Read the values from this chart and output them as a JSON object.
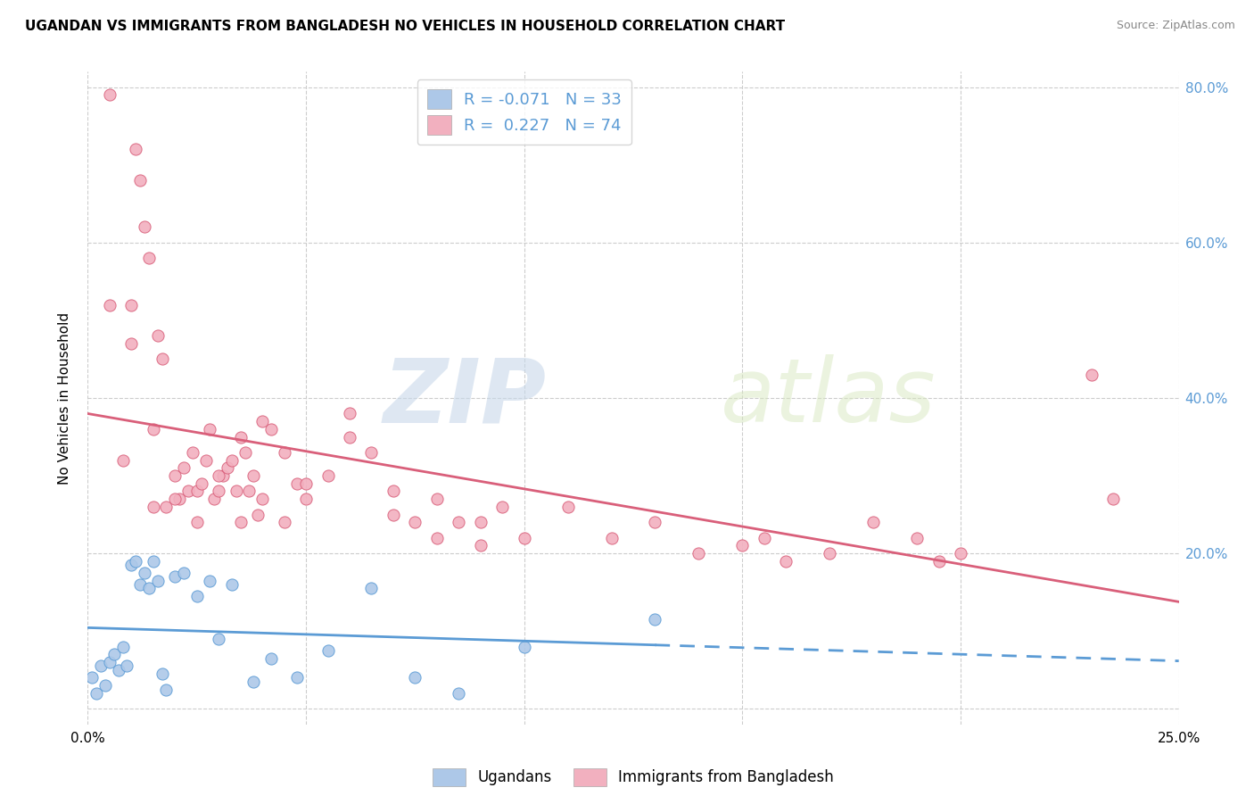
{
  "title": "UGANDAN VS IMMIGRANTS FROM BANGLADESH NO VEHICLES IN HOUSEHOLD CORRELATION CHART",
  "source": "Source: ZipAtlas.com",
  "ylabel": "No Vehicles in Household",
  "xlim": [
    0.0,
    0.25
  ],
  "ylim": [
    -0.02,
    0.82
  ],
  "yticks": [
    0.0,
    0.2,
    0.4,
    0.6,
    0.8
  ],
  "ytick_labels": [
    "",
    "20.0%",
    "40.0%",
    "60.0%",
    "80.0%"
  ],
  "xticks": [
    0.0,
    0.05,
    0.1,
    0.15,
    0.2,
    0.25
  ],
  "xtick_labels": [
    "0.0%",
    "",
    "",
    "",
    "",
    "25.0%"
  ],
  "legend_labels": [
    "Ugandans",
    "Immigrants from Bangladesh"
  ],
  "ugandan_color": "#adc8e8",
  "bangladesh_color": "#f2b0bf",
  "ugandan_line_color": "#5b9bd5",
  "bangladesh_line_color": "#d95f7a",
  "R_ugandan": -0.071,
  "N_ugandan": 33,
  "R_bangladesh": 0.227,
  "N_bangladesh": 74,
  "watermark_zip": "ZIP",
  "watermark_atlas": "atlas",
  "ugandan_x": [
    0.001,
    0.002,
    0.003,
    0.004,
    0.005,
    0.006,
    0.007,
    0.008,
    0.009,
    0.01,
    0.011,
    0.012,
    0.013,
    0.014,
    0.015,
    0.016,
    0.017,
    0.018,
    0.02,
    0.022,
    0.025,
    0.028,
    0.03,
    0.033,
    0.038,
    0.042,
    0.048,
    0.055,
    0.065,
    0.075,
    0.085,
    0.1,
    0.13
  ],
  "ugandan_y": [
    0.04,
    0.02,
    0.055,
    0.03,
    0.06,
    0.07,
    0.05,
    0.08,
    0.055,
    0.185,
    0.19,
    0.16,
    0.175,
    0.155,
    0.19,
    0.165,
    0.045,
    0.025,
    0.17,
    0.175,
    0.145,
    0.165,
    0.09,
    0.16,
    0.035,
    0.065,
    0.04,
    0.075,
    0.155,
    0.04,
    0.02,
    0.08,
    0.115
  ],
  "bangladesh_x": [
    0.005,
    0.008,
    0.01,
    0.011,
    0.012,
    0.013,
    0.014,
    0.015,
    0.016,
    0.017,
    0.018,
    0.02,
    0.021,
    0.022,
    0.023,
    0.024,
    0.025,
    0.026,
    0.027,
    0.028,
    0.029,
    0.03,
    0.031,
    0.032,
    0.033,
    0.034,
    0.035,
    0.036,
    0.037,
    0.038,
    0.039,
    0.04,
    0.042,
    0.045,
    0.048,
    0.05,
    0.055,
    0.06,
    0.065,
    0.07,
    0.075,
    0.08,
    0.085,
    0.09,
    0.095,
    0.1,
    0.11,
    0.12,
    0.13,
    0.14,
    0.15,
    0.155,
    0.16,
    0.17,
    0.18,
    0.19,
    0.195,
    0.2,
    0.005,
    0.01,
    0.015,
    0.02,
    0.025,
    0.03,
    0.035,
    0.04,
    0.045,
    0.05,
    0.06,
    0.07,
    0.08,
    0.09,
    0.23,
    0.235
  ],
  "bangladesh_y": [
    0.52,
    0.32,
    0.47,
    0.72,
    0.68,
    0.62,
    0.58,
    0.36,
    0.48,
    0.45,
    0.26,
    0.3,
    0.27,
    0.31,
    0.28,
    0.33,
    0.28,
    0.29,
    0.32,
    0.36,
    0.27,
    0.28,
    0.3,
    0.31,
    0.32,
    0.28,
    0.35,
    0.33,
    0.28,
    0.3,
    0.25,
    0.37,
    0.36,
    0.33,
    0.29,
    0.27,
    0.3,
    0.35,
    0.33,
    0.28,
    0.24,
    0.22,
    0.24,
    0.21,
    0.26,
    0.22,
    0.26,
    0.22,
    0.24,
    0.2,
    0.21,
    0.22,
    0.19,
    0.2,
    0.24,
    0.22,
    0.19,
    0.2,
    0.79,
    0.52,
    0.26,
    0.27,
    0.24,
    0.3,
    0.24,
    0.27,
    0.24,
    0.29,
    0.38,
    0.25,
    0.27,
    0.24,
    0.43,
    0.27
  ]
}
